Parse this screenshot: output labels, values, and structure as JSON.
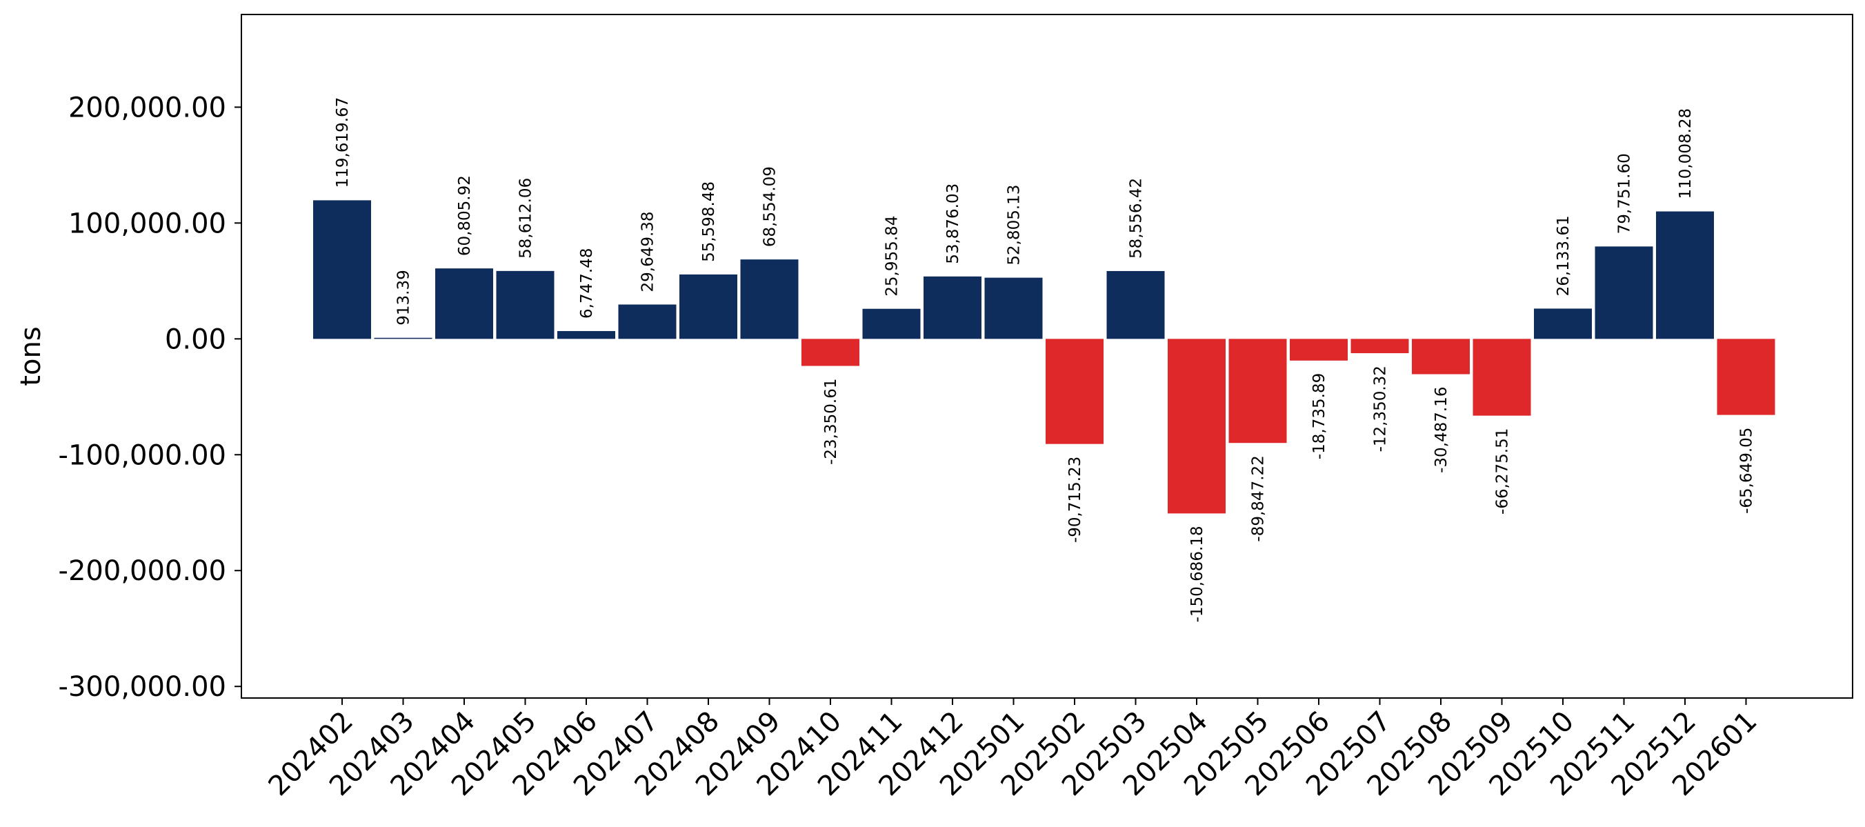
{
  "chart_data": {
    "type": "bar",
    "title": "",
    "xlabel": "",
    "ylabel": "tons",
    "ylim": [
      -310000,
      280000
    ],
    "yticks": [
      -300000,
      -200000,
      -100000,
      0,
      100000,
      200000
    ],
    "ytick_labels": [
      "-300,000.00",
      "-200,000.00",
      "-100,000.00",
      "0.00",
      "100,000.00",
      "200,000.00"
    ],
    "grid": false,
    "legend": "none",
    "colors": {
      "positive": "#0f2d5c",
      "negative": "#de2829"
    },
    "categories": [
      "202402",
      "202403",
      "202404",
      "202405",
      "202406",
      "202407",
      "202408",
      "202409",
      "202410",
      "202411",
      "202412",
      "202501",
      "202502",
      "202503",
      "202504",
      "202505",
      "202506",
      "202507",
      "202508",
      "202509",
      "202510",
      "202511",
      "202512",
      "202601"
    ],
    "values": [
      119619.67,
      913.39,
      60805.92,
      58612.06,
      6747.48,
      29649.38,
      55598.48,
      68554.09,
      -23350.61,
      25955.84,
      53876.03,
      52805.13,
      -90715.23,
      58556.42,
      -150686.18,
      -89847.22,
      -18735.89,
      -12350.32,
      -30487.16,
      -66275.51,
      26133.61,
      79751.6,
      110008.28,
      -65649.05
    ],
    "labels": [
      "119,619.67",
      "913.39",
      "60,805.92",
      "58,612.06",
      "6,747.48",
      "29,649.38",
      "55,598.48",
      "68,554.09",
      "-23,350.61",
      "25,955.84",
      "53,876.03",
      "52,805.13",
      "-90,715.23",
      "58,556.42",
      "-150,686.18",
      "-89,847.22",
      "-18,735.89",
      "-12,350.32",
      "-30,487.16",
      "-66,275.51",
      "26,133.61",
      "79,751.60",
      "110,008.28",
      "-65,649.05"
    ]
  }
}
